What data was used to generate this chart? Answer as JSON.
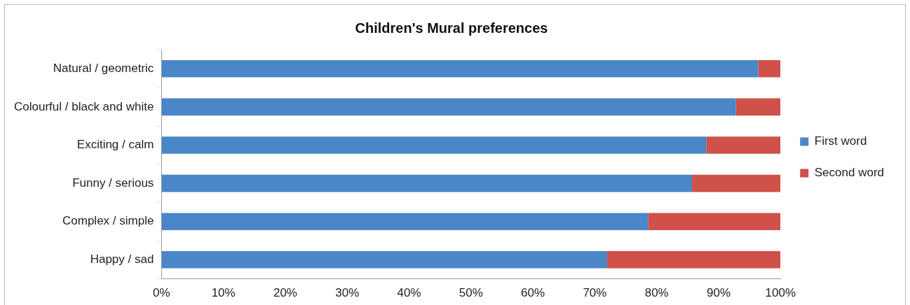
{
  "chart_data": {
    "type": "bar",
    "orientation": "horizontal",
    "stacked": true,
    "title": "Children's Mural preferences",
    "categories": [
      "Natural / geometric",
      "Colourful / black and white",
      "Exciting / calm",
      "Funny / serious",
      "Complex / simple",
      "Happy / sad"
    ],
    "series": [
      {
        "name": "First word",
        "color": "#4a86c8",
        "values": [
          96.4,
          92.8,
          88.0,
          85.7,
          78.6,
          72.0
        ]
      },
      {
        "name": "Second word",
        "color": "#d0504a",
        "values": [
          3.6,
          7.2,
          12.0,
          14.3,
          21.4,
          28.0
        ]
      }
    ],
    "xlim": [
      0,
      100
    ],
    "xticks": [
      {
        "value": 0,
        "label": "0%"
      },
      {
        "value": 10,
        "label": "10%"
      },
      {
        "value": 20,
        "label": "20%"
      },
      {
        "value": 30,
        "label": "30%"
      },
      {
        "value": 40,
        "label": "40%"
      },
      {
        "value": 50,
        "label": "50%"
      },
      {
        "value": 60,
        "label": "60%"
      },
      {
        "value": 70,
        "label": "70%"
      },
      {
        "value": 80,
        "label": "80%"
      },
      {
        "value": 90,
        "label": "90%"
      },
      {
        "value": 100,
        "label": "100%"
      }
    ],
    "grid": false,
    "legend": "right"
  }
}
